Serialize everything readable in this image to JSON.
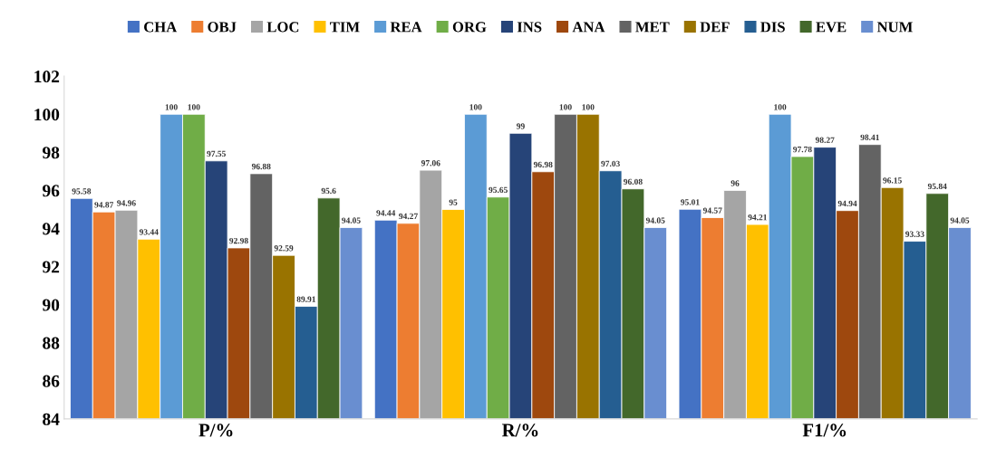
{
  "chart_data": {
    "type": "bar",
    "categories": [
      "P/%",
      "R/%",
      "F1/%"
    ],
    "ylim": [
      84,
      102
    ],
    "yticks": [
      84,
      86,
      88,
      90,
      92,
      94,
      96,
      98,
      100,
      102
    ],
    "grid": false,
    "legend": "top",
    "data_labels": true,
    "series": [
      {
        "name": "CHA",
        "color": "#4472c4",
        "values": [
          95.58,
          94.44,
          95.01
        ]
      },
      {
        "name": "OBJ",
        "color": "#ed7d31",
        "values": [
          94.87,
          94.27,
          94.57
        ]
      },
      {
        "name": "LOC",
        "color": "#a5a5a5",
        "values": [
          94.96,
          97.06,
          96
        ]
      },
      {
        "name": "TIM",
        "color": "#ffc000",
        "values": [
          93.44,
          95,
          94.21
        ]
      },
      {
        "name": "REA",
        "color": "#5b9bd5",
        "values": [
          100,
          100,
          100
        ]
      },
      {
        "name": "ORG",
        "color": "#70ad47",
        "values": [
          100,
          95.65,
          97.78
        ]
      },
      {
        "name": "INS",
        "color": "#264478",
        "values": [
          97.55,
          99,
          98.27
        ]
      },
      {
        "name": "ANA",
        "color": "#9e480e",
        "values": [
          92.98,
          96.98,
          94.94
        ]
      },
      {
        "name": "MET",
        "color": "#636363",
        "values": [
          96.88,
          100,
          98.41
        ]
      },
      {
        "name": "DEF",
        "color": "#997300",
        "values": [
          92.59,
          100,
          96.15
        ]
      },
      {
        "name": "DIS",
        "color": "#255e91",
        "values": [
          89.91,
          97.03,
          93.33
        ]
      },
      {
        "name": "EVE",
        "color": "#43682b",
        "values": [
          95.6,
          96.08,
          95.84
        ]
      },
      {
        "name": "NUM",
        "color": "#698ed0",
        "values": [
          94.05,
          94.05,
          94.05
        ]
      }
    ]
  }
}
